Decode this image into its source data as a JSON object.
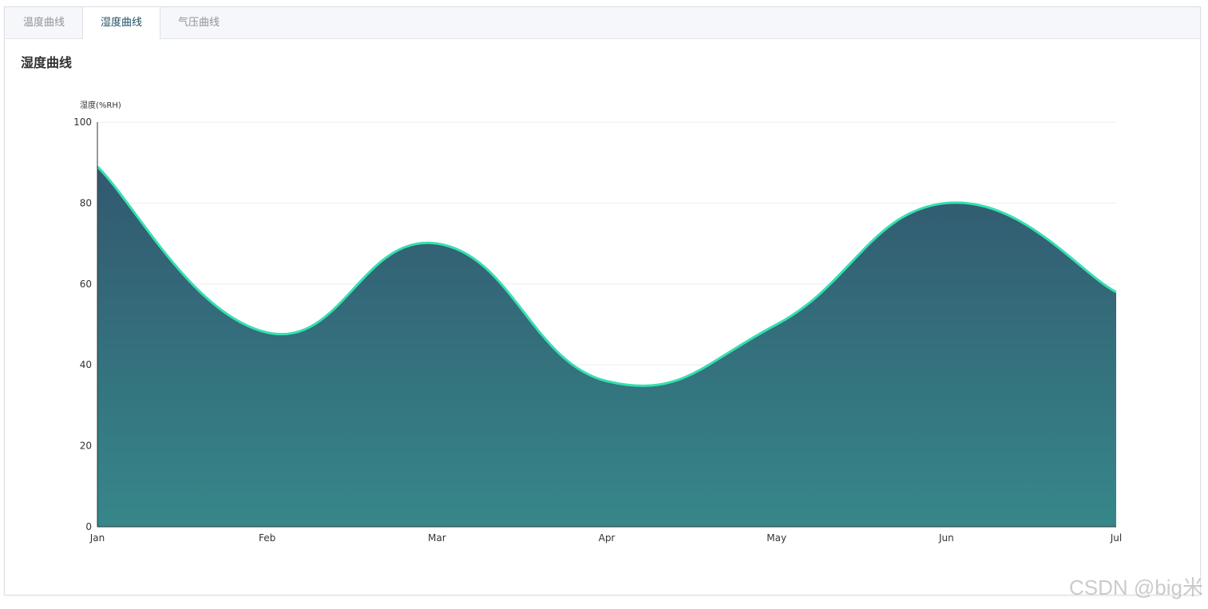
{
  "tabs": [
    {
      "label": "温度曲线",
      "active": false
    },
    {
      "label": "湿度曲线",
      "active": true
    },
    {
      "label": "气压曲线",
      "active": false
    }
  ],
  "panel": {
    "title": "湿度曲线"
  },
  "watermark": "CSDN @big米",
  "chart_data": {
    "type": "area",
    "title": "",
    "ylabel": "湿度(%RH)",
    "xlabel": "",
    "categories": [
      "Jan",
      "Feb",
      "Mar",
      "Apr",
      "May",
      "Jun",
      "Jul"
    ],
    "values": [
      89,
      48,
      70,
      36,
      50,
      80,
      58
    ],
    "ylim": [
      0,
      100
    ],
    "yticks": [
      0,
      20,
      40,
      60,
      80,
      100
    ],
    "smooth": true,
    "grid": true,
    "colors": {
      "line": "#36e0b0",
      "area_top": "#32586f",
      "area_bottom": "#36878a",
      "grid": "#eeeeee",
      "axis": "#333333"
    }
  }
}
